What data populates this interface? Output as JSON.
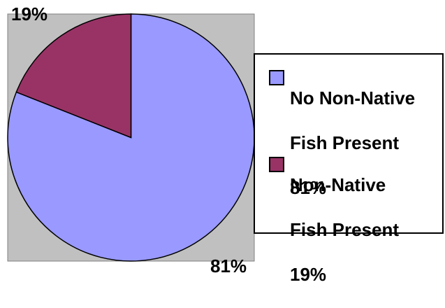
{
  "chart_data": {
    "type": "pie",
    "slices": [
      {
        "label": "No Non-Native Fish Present",
        "value": 81,
        "display": "81%",
        "color": "#9999ff"
      },
      {
        "label": "Non-Native Fish Present",
        "value": 19,
        "display": "19%",
        "color": "#993366"
      }
    ],
    "plot_background": "#c0c0c0",
    "legend": {
      "position": "right",
      "entries": [
        {
          "lines": [
            "No Non-Native",
            "Fish Present",
            "81%"
          ],
          "color": "#9999ff"
        },
        {
          "lines": [
            "Non-Native",
            "Fish Present",
            "19%"
          ],
          "color": "#993366"
        }
      ]
    }
  }
}
